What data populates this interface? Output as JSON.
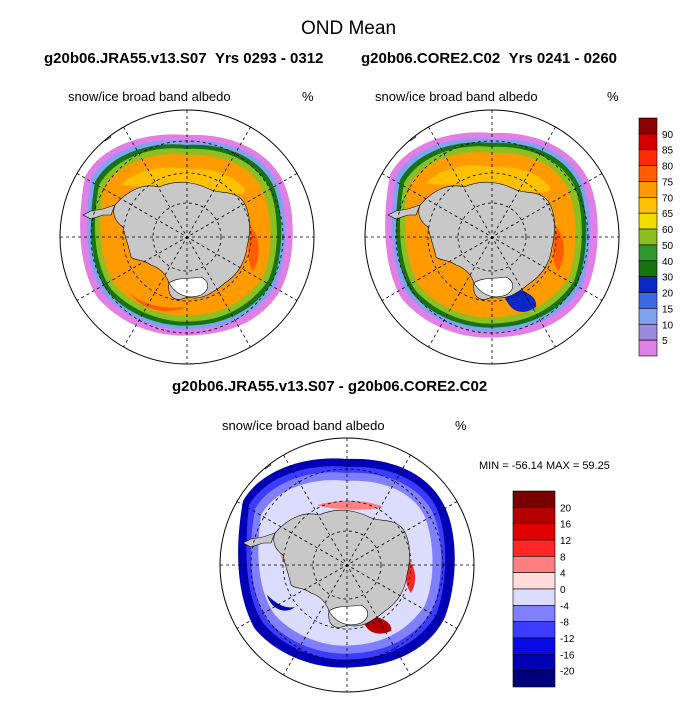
{
  "title": "OND Mean",
  "panels": [
    {
      "case": "g20b06.JRA55.v13.S07",
      "years": "Yrs 0293 - 0312",
      "variable": "snow/ice broad band albedo",
      "units": "%"
    },
    {
      "case": "g20b06.CORE2.C02",
      "years": "Yrs 0241 - 0260",
      "variable": "snow/ice broad band albedo",
      "units": "%"
    }
  ],
  "diff_panel": {
    "title": "g20b06.JRA55.v13.S07 - g20b06.CORE2.C02",
    "variable": "snow/ice broad band albedo",
    "units": "%",
    "min_max": "MIN = -56.14 MAX =  59.25"
  },
  "colorbar_top": {
    "labels": [
      "90",
      "85",
      "80",
      "75",
      "70",
      "65",
      "60",
      "50",
      "40",
      "30",
      "20",
      "15",
      "10",
      "5"
    ],
    "colors": [
      "#8b0000",
      "#d40000",
      "#ff2a00",
      "#ff5d00",
      "#ff9a00",
      "#ffc000",
      "#f2dc00",
      "#8cbf1f",
      "#2e9a2e",
      "#127512",
      "#0a28c8",
      "#3c6ae6",
      "#7fa3f2",
      "#9a8ae0",
      "#e07fe6"
    ]
  },
  "colorbar_diff": {
    "labels": [
      "20",
      "16",
      "12",
      "8",
      "4",
      "0",
      "-4",
      "-8",
      "-12",
      "-16",
      "-20"
    ],
    "colors": [
      "#7a0000",
      "#b40000",
      "#e00000",
      "#ff2626",
      "#ff8080",
      "#ffdcdc",
      "#dcdcff",
      "#8080ff",
      "#3c3cff",
      "#0a0ae6",
      "#0000b4",
      "#00007a"
    ]
  },
  "chart_data": [
    {
      "type": "heatmap",
      "title": "snow/ice broad band albedo",
      "subtitle": "g20b06.JRA55.v13.S07 Yrs 0293 - 0312",
      "units": "%",
      "projection": "south polar stereographic",
      "levels": [
        5,
        10,
        15,
        20,
        30,
        40,
        50,
        60,
        65,
        70,
        75,
        80,
        85,
        90
      ],
      "description_values": {
        "ice_edge": 5,
        "marginal_zone": [
          40,
          60
        ],
        "interior_pack": [
          65,
          80
        ],
        "coastal_max": 85
      }
    },
    {
      "type": "heatmap",
      "title": "snow/ice broad band albedo",
      "subtitle": "g20b06.CORE2.C02 Yrs 0241 - 0260",
      "units": "%",
      "projection": "south polar stereographic",
      "levels": [
        5,
        10,
        15,
        20,
        30,
        40,
        50,
        60,
        65,
        70,
        75,
        80,
        85,
        90
      ],
      "description_values": {
        "ice_edge": 5,
        "marginal_zone": [
          40,
          60
        ],
        "interior_pack": [
          65,
          80
        ],
        "coastal_max": 85
      }
    },
    {
      "type": "heatmap",
      "title": "snow/ice broad band albedo",
      "subtitle": "g20b06.JRA55.v13.S07 - g20b06.CORE2.C02",
      "units": "%",
      "projection": "south polar stereographic",
      "levels": [
        -20,
        -16,
        -12,
        -8,
        -4,
        0,
        4,
        8,
        12,
        16,
        20
      ],
      "min": -56.14,
      "max": 59.25
    }
  ]
}
